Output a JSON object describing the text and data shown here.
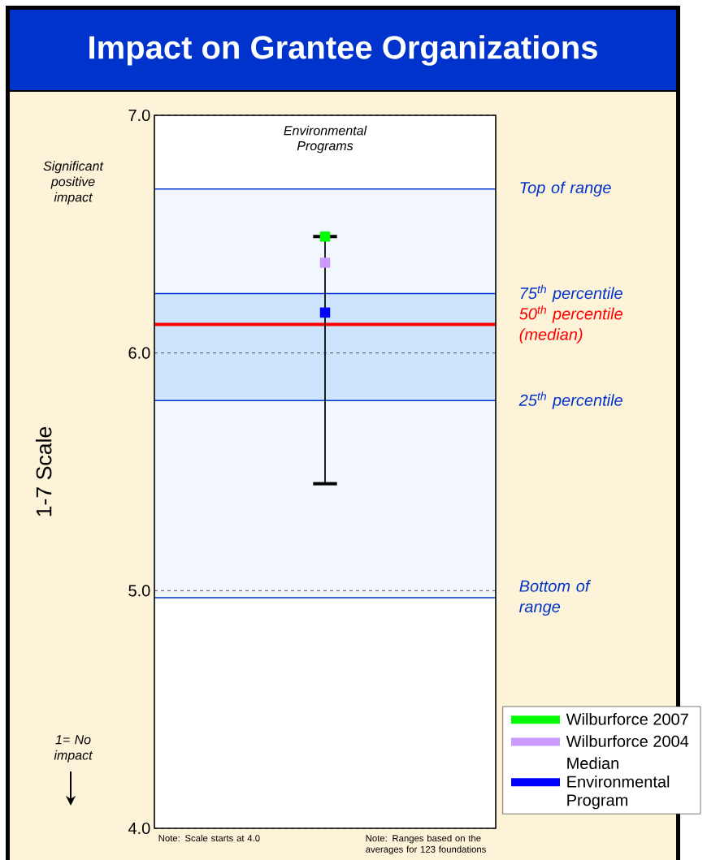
{
  "chart_data": {
    "type": "scatter",
    "title": "Impact on Grantee Organizations",
    "categories": [
      "Environmental Programs"
    ],
    "ylabel": "1-7 Scale",
    "ylim": [
      4,
      7
    ],
    "yticks": [
      {
        "value": 4,
        "label": "4.0"
      },
      {
        "value": 5,
        "label": "5.0"
      },
      {
        "value": 6,
        "label": "6.0"
      },
      {
        "value": 7,
        "label": "7.0"
      }
    ],
    "grid": "y",
    "series": [
      {
        "name": "Wilburforce 2007",
        "color": "#00ff00",
        "values": [
          6.49
        ],
        "errors": [
          [
            5.45,
            6.49
          ]
        ]
      },
      {
        "name": "Wilburforce 2004",
        "color": "#cc99ff",
        "values": [
          6.38
        ]
      },
      {
        "name": "Median Environmental Program",
        "color": "#0000ff",
        "values": [
          6.17
        ]
      }
    ],
    "bands": [
      {
        "axis": "y",
        "from": 4.97,
        "to": 6.69,
        "color": "#f2f7fe"
      },
      {
        "axis": "y",
        "from": 5.8,
        "to": 6.25,
        "color": "#cce5fc"
      }
    ],
    "ref_lines": [
      {
        "axis": "y",
        "value": 6.69,
        "label": "Top of range",
        "color": "#0033cc"
      },
      {
        "axis": "y",
        "value": 6.25,
        "label": "75$^{th}$ percentile",
        "color": "#0033cc"
      },
      {
        "axis": "y",
        "value": 6.12,
        "label": "50$^{th}$ percentile (median)",
        "color": "#ff0000"
      },
      {
        "axis": "y",
        "value": 5.8,
        "label": "25$^{th}$ percentile",
        "color": "#0033cc"
      },
      {
        "axis": "y",
        "value": 4.97,
        "label": "Bottom of range",
        "color": "#0033cc"
      }
    ],
    "annotations": [
      "Significant positive impact",
      "1= No impact",
      "Note: Scale starts at 4.0",
      "Note: Ranges based on the averages for 123 foundations"
    ],
    "legend": "bottom right",
    "marker": "square"
  }
}
